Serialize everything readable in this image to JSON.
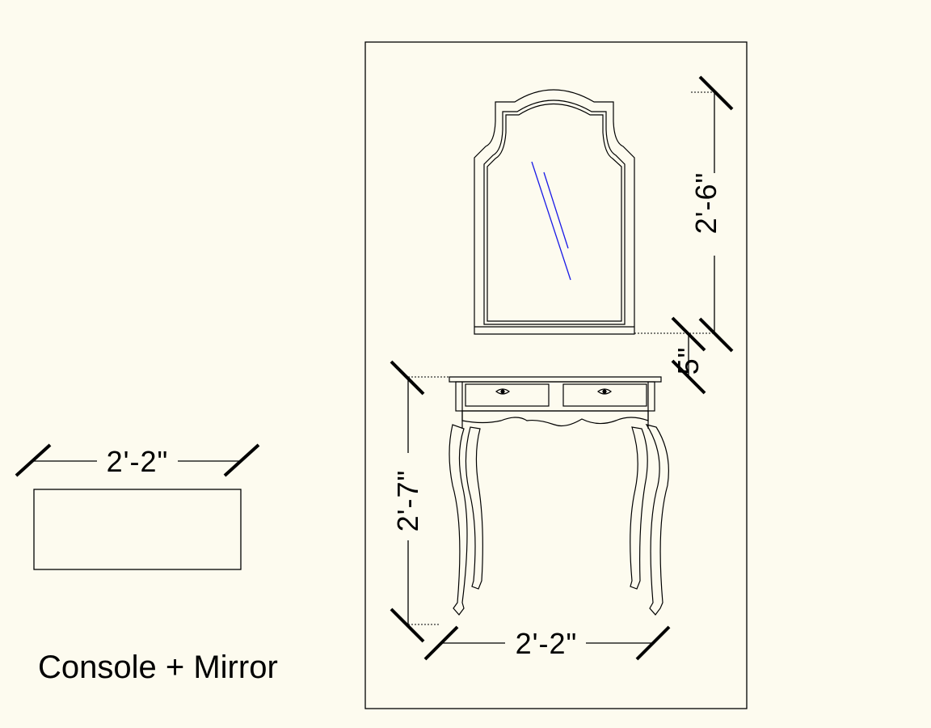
{
  "drawing": {
    "title": "Console + Mirror",
    "plan_width_label": "2'-2\"",
    "elevation_width_label": "2'-2\"",
    "console_height_label": "2'-7\"",
    "mirror_height_label": "2'-6\"",
    "gap_label": "5\""
  },
  "colors": {
    "background": "#fdfbef",
    "line": "#000000",
    "mirror_glint": "#1a1ae6"
  }
}
